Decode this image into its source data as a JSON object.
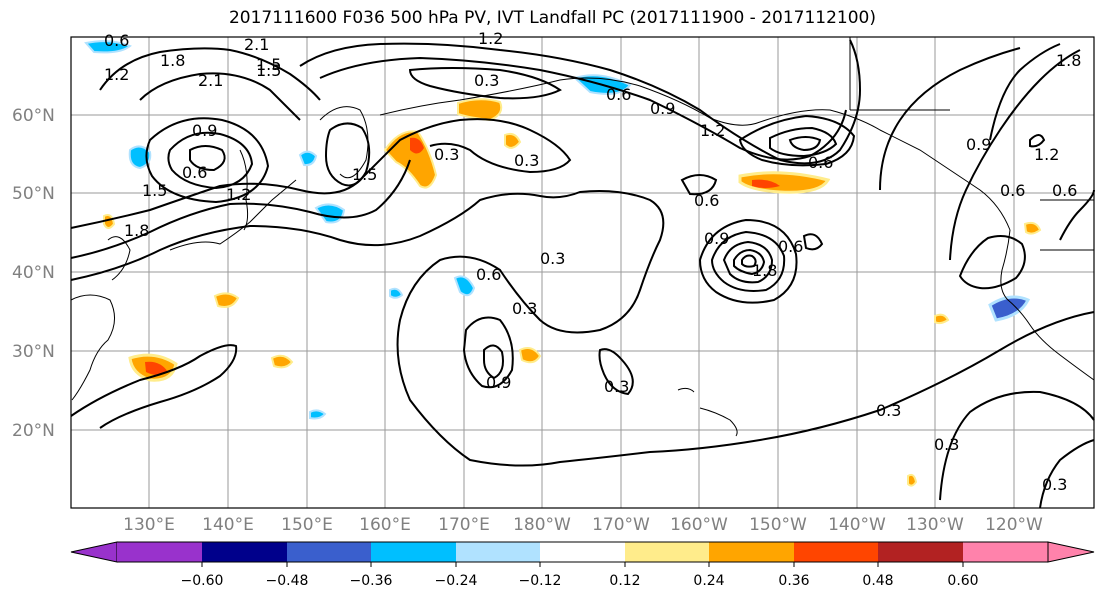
{
  "title": "2017111600 F036 500 hPa PV, IVT Landfall PC (2017111900 - 2017112100)",
  "map": {
    "lat_labels": [
      "60°N",
      "50°N",
      "40°N",
      "30°N",
      "20°N"
    ],
    "lon_labels": [
      "130°E",
      "140°E",
      "150°E",
      "160°E",
      "170°E",
      "180°W",
      "170°W",
      "160°W",
      "150°W",
      "140°W",
      "130°W",
      "120°W"
    ],
    "contour_labels": [
      "0.6",
      "1.2",
      "1.8",
      "2.1",
      "1.5",
      "2.1",
      "1.2",
      "0.3",
      "0.6",
      "0.9",
      "1.2",
      "0.9",
      "0.6",
      "1.5",
      "1.5",
      "0.3",
      "0.3",
      "1.8",
      "1.2",
      "1.5",
      "0.6",
      "0.6",
      "0.9",
      "0.6",
      "1.8",
      "0.3",
      "0.6",
      "0.3",
      "0.9",
      "0.3",
      "0.3",
      "0.3",
      "0.3",
      "0.6",
      "1.2",
      "0.9",
      "1.8",
      "0.6"
    ]
  },
  "colorbar": {
    "ticks": [
      "−0.60",
      "−0.48",
      "−0.36",
      "−0.24",
      "−0.12",
      "0.12",
      "0.24",
      "0.36",
      "0.48",
      "0.60"
    ],
    "colors": [
      "#9932cc",
      "#00008b",
      "#3a5fcd",
      "#00bfff",
      "#b0e2ff",
      "#ffffff",
      "#ffec8b",
      "#ffa500",
      "#ff4500",
      "#b22222",
      "#ff82ab"
    ]
  }
}
